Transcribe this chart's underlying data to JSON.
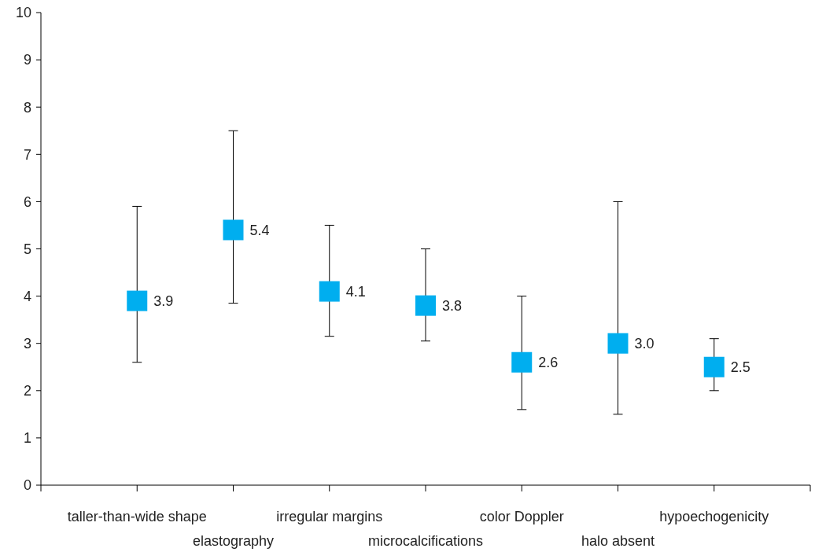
{
  "chart_data": {
    "type": "scatter",
    "categories": [
      "taller-than-wide shape",
      "elastography",
      "irregular margins",
      "microcalcifications",
      "color Doppler",
      "halo absent",
      "hypoechogenicity"
    ],
    "values": [
      3.9,
      5.4,
      4.1,
      3.8,
      2.6,
      3.0,
      2.5
    ],
    "errors": [
      [
        2.6,
        5.9
      ],
      [
        3.85,
        7.5
      ],
      [
        3.15,
        5.5
      ],
      [
        3.05,
        5.0
      ],
      [
        1.6,
        4.0
      ],
      [
        1.5,
        6.0
      ],
      [
        2.0,
        3.1
      ]
    ],
    "value_labels": [
      "3.9",
      "5.4",
      "4.1",
      "3.8",
      "2.6",
      "3.0",
      "2.5"
    ],
    "color": "#00aeef",
    "marker": "square",
    "grid": false,
    "ylim": [
      0,
      10
    ],
    "yticks": [
      0,
      1,
      2,
      3,
      4,
      5,
      6,
      7,
      8,
      9,
      10
    ]
  }
}
